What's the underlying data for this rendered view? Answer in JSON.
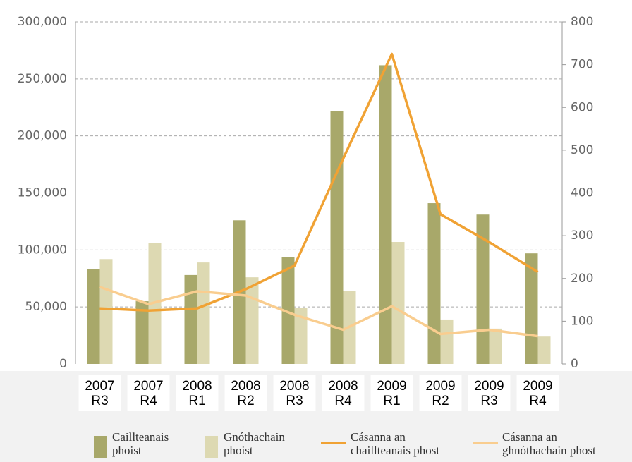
{
  "chart_data": {
    "type": "bar",
    "categories": [
      [
        "2007",
        "R3"
      ],
      [
        "2007",
        "R4"
      ],
      [
        "2008",
        "R1"
      ],
      [
        "2008",
        "R2"
      ],
      [
        "2008",
        "R3"
      ],
      [
        "2008",
        "R4"
      ],
      [
        "2009",
        "R1"
      ],
      [
        "2009",
        "R2"
      ],
      [
        "2009",
        "R3"
      ],
      [
        "2009",
        "R4"
      ]
    ],
    "series": [
      {
        "name": "Caillteanais phoist",
        "type": "bar",
        "color": "#a8a86a",
        "values": [
          83000,
          55000,
          78000,
          126000,
          94000,
          222000,
          262000,
          141000,
          131000,
          97000
        ]
      },
      {
        "name": "Gnóthachain phoist",
        "type": "bar",
        "color": "#ddd9b2",
        "values": [
          92000,
          106000,
          89000,
          76000,
          49000,
          64000,
          107000,
          39000,
          31000,
          24000
        ]
      },
      {
        "name": "Cásanna an chaillteanais phost",
        "type": "line",
        "axis": "y2",
        "color": "#f0a234",
        "values": [
          130,
          125,
          130,
          175,
          230,
          480,
          725,
          350,
          285,
          215
        ]
      },
      {
        "name": "Cásanna an ghnóthachain phost",
        "type": "line",
        "axis": "y2",
        "color": "#f9cd8f",
        "values": [
          180,
          140,
          170,
          160,
          115,
          80,
          135,
          70,
          80,
          65
        ]
      }
    ],
    "ylim": [
      0,
      300000
    ],
    "yticks": [
      0,
      {
        "value": 50000,
        "label": "50,000"
      },
      {
        "value": 100000,
        "label": "100,000"
      },
      {
        "value": 150000,
        "label": "150,000"
      },
      {
        "value": 200000,
        "label": "200,000"
      },
      {
        "value": 250000,
        "label": "250,000"
      },
      {
        "value": 300000,
        "label": "300,000"
      }
    ],
    "y2lim": [
      0,
      800
    ],
    "y2ticks": [
      0,
      100,
      200,
      300,
      400,
      500,
      600,
      700,
      800
    ],
    "grid": true
  }
}
